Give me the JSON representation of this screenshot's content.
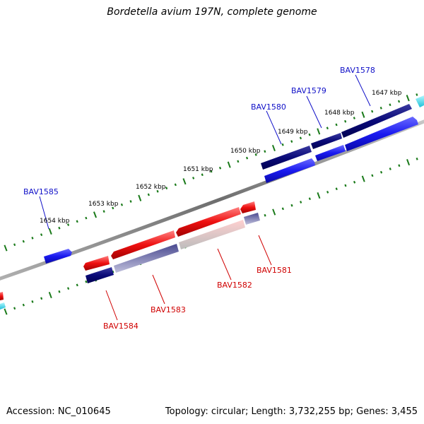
{
  "title": "Bordetella avium 197N, complete genome",
  "footer": {
    "accession": "Accession: NC_010645",
    "topology": "Topology: circular; Length: 3,732,255 bp; Genes: 3,455"
  },
  "scale_labels": [
    "1647 kbp",
    "1648 kbp",
    "1649 kbp",
    "1650 kbp",
    "1651 kbp",
    "1652 kbp",
    "1653 kbp",
    "1654 kbp"
  ],
  "genes_top": [
    "BAV1578",
    "BAV1579",
    "BAV1580",
    "BAV1585"
  ],
  "genes_bottom": [
    "BAV1581",
    "BAV1582",
    "BAV1583",
    "BAV1584"
  ],
  "colors": {
    "forward_label": "#1010c8",
    "reverse_label": "#d00000",
    "navy": "#0a0a78",
    "blue": "#1a1af0",
    "red": "#ee1010",
    "cyan": "#40e0f0",
    "scale_tick": "#1a7a1a",
    "backbone": "#808080"
  }
}
